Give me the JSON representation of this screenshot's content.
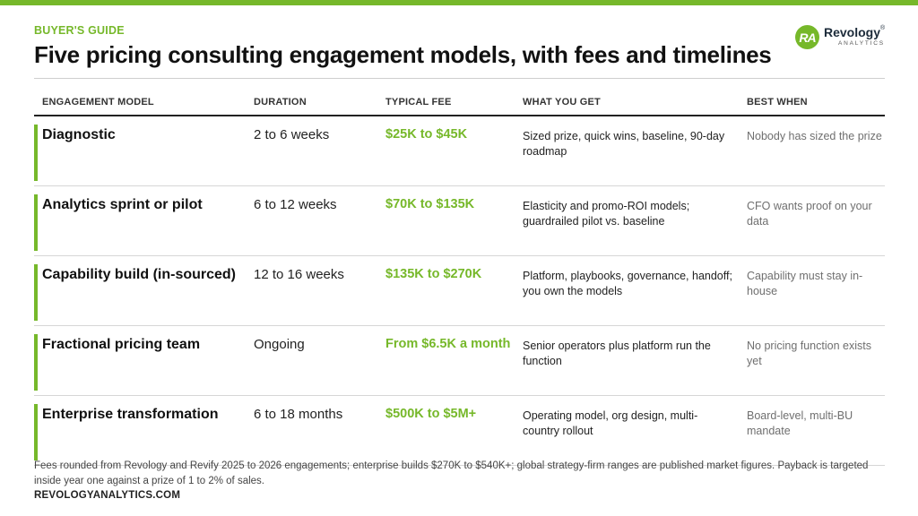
{
  "header": {
    "eyebrow": "BUYER'S GUIDE",
    "title": "Five pricing consulting engagement models, with fees and timelines"
  },
  "logo": {
    "mark": "RA",
    "name": "Revology",
    "registered": "®",
    "subtitle": "ANALYTICS"
  },
  "table": {
    "headers": {
      "model": "ENGAGEMENT MODEL",
      "duration": "DURATION",
      "fee": "TYPICAL FEE",
      "get": "WHAT YOU GET",
      "best": "BEST WHEN"
    },
    "rows": [
      {
        "model": "Diagnostic",
        "duration": "2 to 6 weeks",
        "fee": "$25K to $45K",
        "get": "Sized prize, quick wins, baseline, 90-day roadmap",
        "best": "Nobody has sized the prize"
      },
      {
        "model": "Analytics sprint or pilot",
        "duration": "6 to 12 weeks",
        "fee": "$70K to $135K",
        "get": "Elasticity and promo-ROI models; guardrailed pilot vs. baseline",
        "best": "CFO wants proof on your data"
      },
      {
        "model": "Capability build (in-sourced)",
        "duration": "12 to 16 weeks",
        "fee": "$135K to $270K",
        "get": "Platform, playbooks, governance, handoff; you own the models",
        "best": "Capability must stay in-house"
      },
      {
        "model": "Fractional pricing team",
        "duration": "Ongoing",
        "fee": "From $6.5K a month",
        "get": "Senior operators plus platform run the function",
        "best": "No pricing function exists yet"
      },
      {
        "model": "Enterprise transformation",
        "duration": "6 to 18 months",
        "fee": "$500K to $5M+",
        "get": "Operating model, org design, multi-country rollout",
        "best": "Board-level, multi-BU mandate"
      }
    ]
  },
  "footer": {
    "note": "Fees rounded from Revology and Revify 2025 to 2026 engagements; enterprise builds $270K to $540K+; global strategy-firm ranges are published market figures. Payback is targeted inside year one against a prize of 1 to 2% of sales.",
    "site": "REVOLOGYANALYTICS.COM"
  },
  "colors": {
    "accent": "#76b82a",
    "title": "#111111",
    "muted": "#6f6f6f"
  }
}
